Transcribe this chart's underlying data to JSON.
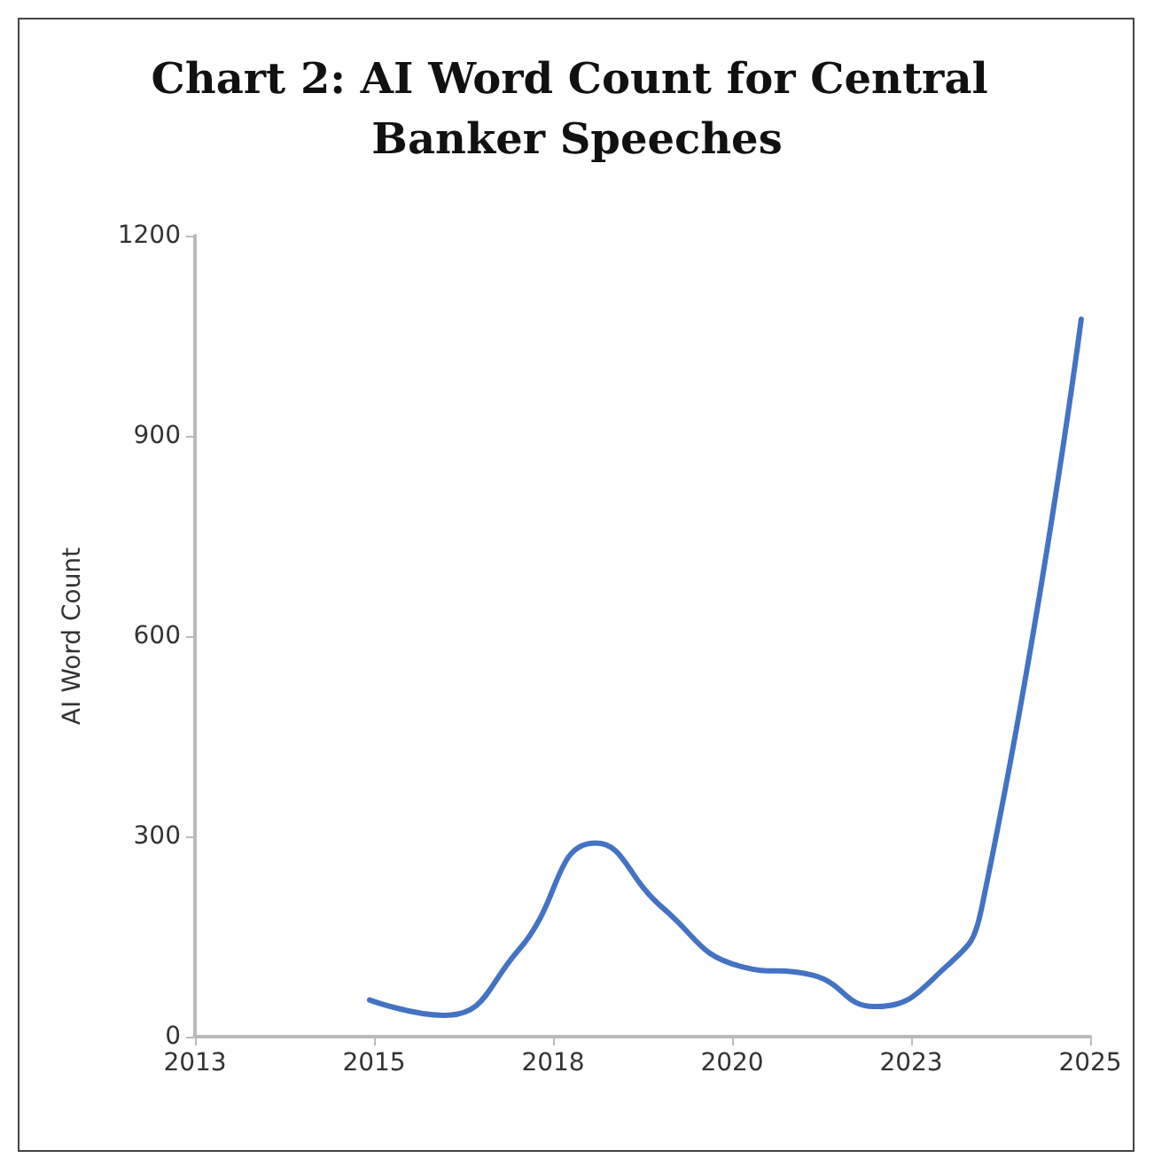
{
  "chart_data": {
    "type": "line",
    "title": "Chart 2: AI Word Count for Central Banker Speeches",
    "ylabel": "AI Word Count",
    "x": [
      2015.34,
      2016.34,
      2017.34,
      2018.37,
      2019.25,
      2020.32,
      2021.28,
      2022.11,
      2023.07,
      2023.54,
      2024.88
    ],
    "series": [
      {
        "color": "#4472c4",
        "values": [
          55,
          32,
          130,
          290,
          195,
          105,
          92,
          45,
          105,
          190,
          1075
        ]
      }
    ],
    "xlim": [
      2013,
      2025
    ],
    "xticks": [
      {
        "value": 2013,
        "label": "2013"
      },
      {
        "value": 2015.4,
        "label": "2015"
      },
      {
        "value": 2017.8,
        "label": "2018"
      },
      {
        "value": 2020.2,
        "label": "2020"
      },
      {
        "value": 2022.6,
        "label": "2023"
      },
      {
        "value": 2025,
        "label": "2025"
      }
    ],
    "ylim": [
      0,
      1200
    ],
    "yticks": [
      0,
      300,
      600,
      900,
      1200
    ],
    "marker": "none",
    "line_style": "solid"
  }
}
